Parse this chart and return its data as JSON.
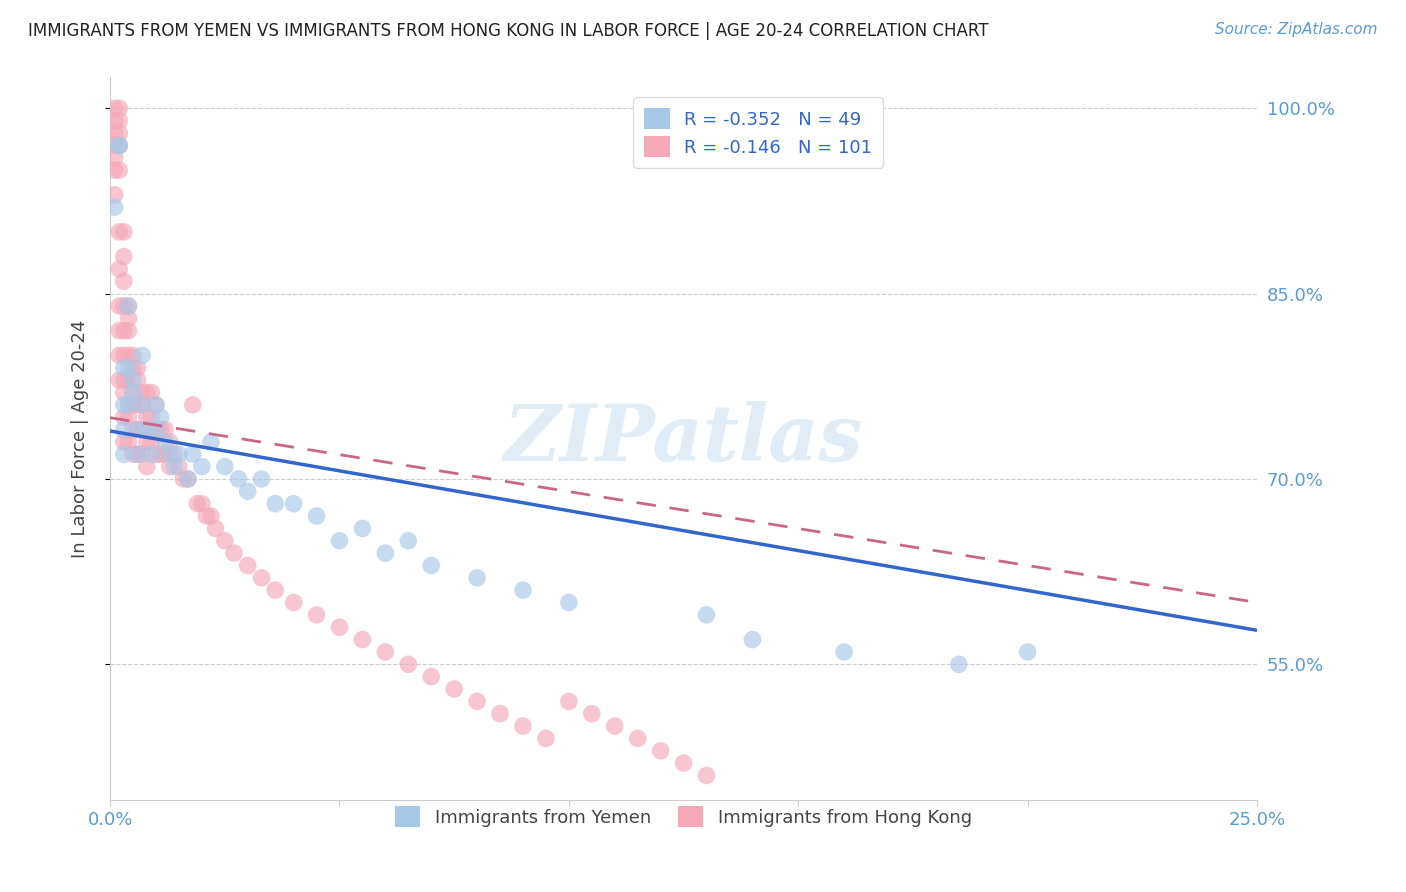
{
  "title": "IMMIGRANTS FROM YEMEN VS IMMIGRANTS FROM HONG KONG IN LABOR FORCE | AGE 20-24 CORRELATION CHART",
  "source": "Source: ZipAtlas.com",
  "ylabel": "In Labor Force | Age 20-24",
  "xlim": [
    0.0,
    0.25
  ],
  "ylim": [
    0.44,
    1.025
  ],
  "yticks": [
    0.55,
    0.7,
    0.85,
    1.0
  ],
  "ytick_labels": [
    "55.0%",
    "70.0%",
    "85.0%",
    "100.0%"
  ],
  "xticks": [
    0.0,
    0.05,
    0.1,
    0.15,
    0.2,
    0.25
  ],
  "xtick_labels": [
    "0.0%",
    "",
    "",
    "",
    "",
    "25.0%"
  ],
  "legend_r_yemen": "-0.352",
  "legend_n_yemen": "49",
  "legend_r_hk": "-0.146",
  "legend_n_hk": "101",
  "legend_label_yemen": "Immigrants from Yemen",
  "legend_label_hk": "Immigrants from Hong Kong",
  "color_yemen": "#A8C8E8",
  "color_hk": "#F4A8B8",
  "line_color_yemen": "#3366CC",
  "line_color_hk": "#CC6688",
  "watermark": "ZIPatlas",
  "background_color": "#FFFFFF",
  "yemen_x": [
    0.001,
    0.002,
    0.002,
    0.003,
    0.003,
    0.003,
    0.003,
    0.004,
    0.004,
    0.004,
    0.005,
    0.005,
    0.006,
    0.006,
    0.007,
    0.007,
    0.008,
    0.009,
    0.01,
    0.01,
    0.011,
    0.012,
    0.013,
    0.014,
    0.015,
    0.017,
    0.018,
    0.02,
    0.022,
    0.025,
    0.028,
    0.03,
    0.033,
    0.036,
    0.04,
    0.045,
    0.05,
    0.055,
    0.06,
    0.065,
    0.07,
    0.08,
    0.09,
    0.1,
    0.13,
    0.14,
    0.16,
    0.185,
    0.2
  ],
  "yemen_y": [
    0.92,
    0.97,
    0.97,
    0.79,
    0.76,
    0.74,
    0.72,
    0.84,
    0.79,
    0.76,
    0.78,
    0.77,
    0.74,
    0.72,
    0.8,
    0.76,
    0.74,
    0.72,
    0.76,
    0.74,
    0.75,
    0.73,
    0.72,
    0.71,
    0.72,
    0.7,
    0.72,
    0.71,
    0.73,
    0.71,
    0.7,
    0.69,
    0.7,
    0.68,
    0.68,
    0.67,
    0.65,
    0.66,
    0.64,
    0.65,
    0.63,
    0.62,
    0.61,
    0.6,
    0.59,
    0.57,
    0.56,
    0.55,
    0.56
  ],
  "hk_x": [
    0.001,
    0.001,
    0.001,
    0.001,
    0.001,
    0.001,
    0.001,
    0.002,
    0.002,
    0.002,
    0.002,
    0.002,
    0.002,
    0.002,
    0.002,
    0.002,
    0.002,
    0.002,
    0.003,
    0.003,
    0.003,
    0.003,
    0.003,
    0.003,
    0.003,
    0.003,
    0.003,
    0.003,
    0.004,
    0.004,
    0.004,
    0.004,
    0.004,
    0.004,
    0.004,
    0.004,
    0.005,
    0.005,
    0.005,
    0.005,
    0.005,
    0.005,
    0.006,
    0.006,
    0.006,
    0.006,
    0.006,
    0.007,
    0.007,
    0.007,
    0.007,
    0.008,
    0.008,
    0.008,
    0.008,
    0.009,
    0.009,
    0.009,
    0.01,
    0.01,
    0.01,
    0.011,
    0.011,
    0.012,
    0.012,
    0.013,
    0.013,
    0.014,
    0.015,
    0.016,
    0.017,
    0.018,
    0.019,
    0.02,
    0.021,
    0.022,
    0.023,
    0.025,
    0.027,
    0.03,
    0.033,
    0.036,
    0.04,
    0.045,
    0.05,
    0.055,
    0.06,
    0.065,
    0.07,
    0.075,
    0.08,
    0.085,
    0.09,
    0.095,
    0.1,
    0.105,
    0.11,
    0.115,
    0.12,
    0.125,
    0.13
  ],
  "hk_y": [
    1.0,
    0.99,
    0.98,
    0.97,
    0.96,
    0.95,
    0.93,
    1.0,
    0.99,
    0.98,
    0.97,
    0.95,
    0.9,
    0.87,
    0.84,
    0.82,
    0.8,
    0.78,
    0.9,
    0.88,
    0.86,
    0.84,
    0.82,
    0.8,
    0.78,
    0.77,
    0.75,
    0.73,
    0.84,
    0.83,
    0.82,
    0.8,
    0.78,
    0.76,
    0.75,
    0.73,
    0.8,
    0.79,
    0.77,
    0.76,
    0.74,
    0.72,
    0.79,
    0.78,
    0.76,
    0.74,
    0.72,
    0.77,
    0.76,
    0.74,
    0.72,
    0.77,
    0.75,
    0.73,
    0.71,
    0.77,
    0.75,
    0.73,
    0.76,
    0.74,
    0.72,
    0.74,
    0.72,
    0.74,
    0.72,
    0.73,
    0.71,
    0.72,
    0.71,
    0.7,
    0.7,
    0.76,
    0.68,
    0.68,
    0.67,
    0.67,
    0.66,
    0.65,
    0.64,
    0.63,
    0.62,
    0.61,
    0.6,
    0.59,
    0.58,
    0.57,
    0.56,
    0.55,
    0.54,
    0.53,
    0.52,
    0.51,
    0.5,
    0.49,
    0.52,
    0.51,
    0.5,
    0.49,
    0.48,
    0.47,
    0.46
  ]
}
